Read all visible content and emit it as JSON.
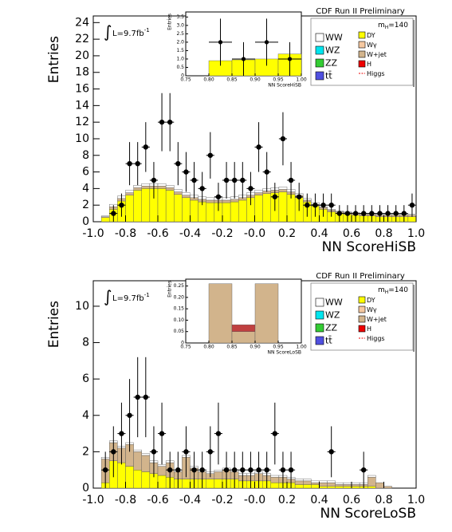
{
  "chart_data": [
    {
      "type": "histogram",
      "title": "CDF Run II Preliminary",
      "xlabel": "NN ScoreHiSB",
      "ylabel": "Entries",
      "integral": "∫",
      "lumi": "L=9.7fb",
      "lumi_exp": "-1",
      "mass": "m",
      "mass_sub": "H",
      "mass_val": "=140",
      "xlim": [
        -1,
        1
      ],
      "ylim": [
        0,
        24.8
      ],
      "xticks": [
        {
          "value": -1,
          "label": "-1.0"
        },
        -0.8,
        -0.6,
        -0.4,
        -0.2,
        {
          "value": 0,
          "label": "-0.0"
        },
        0.2,
        0.4,
        0.6,
        0.8,
        {
          "value": 1,
          "label": "1.0"
        }
      ],
      "yticks": [
        0,
        2,
        4,
        6,
        8,
        10,
        12,
        14,
        16,
        18,
        20,
        22,
        24
      ],
      "bins": [
        -1,
        -0.95,
        -0.9,
        -0.85,
        -0.8,
        -0.75,
        -0.7,
        -0.65,
        -0.6,
        -0.55,
        -0.5,
        -0.45,
        -0.4,
        -0.35,
        -0.3,
        -0.25,
        -0.2,
        -0.15,
        -0.1,
        -0.05,
        0,
        0.05,
        0.1,
        0.15,
        0.2,
        0.25,
        0.3,
        0.35,
        0.4,
        0.45,
        0.5,
        0.55,
        0.6,
        0.65,
        0.7,
        0.75,
        0.8,
        0.85,
        0.9,
        0.95,
        1
      ],
      "series": [
        {
          "name": "DY",
          "color": "#ffff00",
          "values": [
            0,
            0.5,
            1.5,
            2.5,
            3.2,
            3.8,
            4,
            4,
            4,
            3.8,
            3.3,
            2.9,
            2.6,
            2.4,
            2.3,
            2.3,
            2.3,
            2.4,
            2.6,
            2.9,
            3.2,
            3.4,
            3.5,
            3.6,
            3.3,
            2.9,
            2.4,
            1.9,
            1.5,
            1.2,
            1,
            0.9,
            0.8,
            0.7,
            0.7,
            0.6,
            0.6,
            0.6,
            0.6,
            0.6
          ]
        },
        {
          "name": "W+jet",
          "color": "#d2b48c",
          "values": [
            0,
            0.1,
            0.3,
            0.3,
            0.3,
            0.3,
            0.3,
            0.3,
            0.3,
            0.3,
            0.3,
            0.3,
            0.3,
            0.3,
            0.3,
            0.3,
            0.3,
            0.3,
            0.3,
            0.3,
            0.3,
            0.3,
            0.3,
            0.3,
            0.3,
            0.3,
            0.2,
            0.2,
            0.2,
            0.2,
            0.2,
            0.2,
            0.2,
            0.2,
            0.2,
            0.2,
            0.2,
            0.2,
            0.2,
            0.2
          ]
        },
        {
          "name": "WW",
          "color": "#ffffff",
          "values": [
            0,
            0.1,
            0.3,
            0.3,
            0.3,
            0.3,
            0.3,
            0.3,
            0.3,
            0.3,
            0.3,
            0.3,
            0.3,
            0.3,
            0.3,
            0.3,
            0.3,
            0.3,
            0.3,
            0.3,
            0.3,
            0.3,
            0.3,
            0.3,
            0.3,
            0.2,
            0.2,
            0.2,
            0.1,
            0.1,
            0.1,
            0.1,
            0.1,
            0.1,
            0.1,
            0.1,
            0.1,
            0.1,
            0.1,
            0.1
          ]
        }
      ],
      "data": {
        "color": "#000000",
        "values": [
          null,
          null,
          1,
          2,
          7,
          7,
          9,
          5,
          12,
          12,
          7,
          6,
          5,
          4,
          8,
          3,
          5,
          5,
          5,
          4,
          9,
          6,
          3,
          10,
          5,
          3,
          2,
          2,
          2,
          2,
          1,
          1,
          1,
          1,
          1,
          1,
          1,
          1,
          1,
          2
        ],
        "errors": [
          null,
          null,
          1,
          1.4,
          2.6,
          2.6,
          3,
          2.2,
          3.5,
          3.5,
          2.6,
          2.4,
          2.2,
          2,
          2.8,
          1.7,
          2.2,
          2.2,
          2.2,
          2,
          3,
          2.4,
          1.7,
          3.2,
          2.2,
          1.7,
          1.4,
          1.4,
          1.4,
          1.4,
          1,
          1,
          1,
          1,
          1,
          1,
          1,
          1,
          1,
          1.4
        ]
      },
      "legend": [
        {
          "name": "WW",
          "color": "#ffffff"
        },
        {
          "name": "WZ",
          "color": "#00e5ee"
        },
        {
          "name": "ZZ",
          "color": "#33cc33"
        },
        {
          "name": "tt̄",
          "color": "#5050e0"
        },
        {
          "name": "DY",
          "color": "#ffff00"
        },
        {
          "name": "Wγ",
          "color": "#f5c8a0"
        },
        {
          "name": "W+jet",
          "color": "#d2b48c"
        },
        {
          "name": "H",
          "color": "#ee0000"
        },
        {
          "name": "Higgs",
          "color": "#ee0000",
          "dashed": true
        }
      ]
    },
    {
      "type": "histogram",
      "title": "CDF Run II Preliminary",
      "xlabel": "NN ScoreLoSB",
      "ylabel": "Entries",
      "integral": "∫",
      "lumi": "L=9.7fb",
      "lumi_exp": "-1",
      "mass": "m",
      "mass_sub": "H",
      "mass_val": "=140",
      "xlim": [
        -1,
        1
      ],
      "ylim": [
        0,
        11.4
      ],
      "xticks": [
        {
          "value": -1,
          "label": "-1.0"
        },
        -0.8,
        -0.6,
        -0.4,
        -0.2,
        {
          "value": 0,
          "label": "-0.0"
        },
        0.2,
        0.4,
        0.6,
        0.8,
        {
          "value": 1,
          "label": "1.0"
        }
      ],
      "yticks": [
        0,
        2,
        4,
        6,
        8,
        10
      ],
      "bins": [
        -1,
        -0.95,
        -0.9,
        -0.85,
        -0.8,
        -0.75,
        -0.7,
        -0.65,
        -0.6,
        -0.55,
        -0.5,
        -0.45,
        -0.4,
        -0.35,
        -0.3,
        -0.25,
        -0.2,
        -0.15,
        -0.1,
        -0.05,
        0,
        0.05,
        0.1,
        0.15,
        0.2,
        0.25,
        0.3,
        0.35,
        0.4,
        0.45,
        0.5,
        0.55,
        0.6,
        0.65,
        0.7,
        0.75,
        0.8,
        0.85,
        0.9,
        0.95,
        1
      ],
      "series": [
        {
          "name": "DY",
          "color": "#ffff00",
          "values": [
            0,
            0.3,
            1.5,
            1.4,
            1.2,
            1.0,
            0.9,
            0.8,
            0.7,
            0.6,
            0.5,
            0.5,
            0.5,
            0.5,
            0.5,
            0.5,
            0.5,
            0.5,
            0.4,
            0.4,
            0.4,
            0.4,
            0.3,
            0.3,
            0.3,
            0.2,
            0.2,
            0.2,
            0.1,
            0.1,
            0.1,
            0.1,
            0.1,
            0.1,
            0.1,
            0,
            0,
            0,
            0,
            0
          ]
        },
        {
          "name": "W+jet",
          "color": "#d2b48c",
          "values": [
            0,
            1.3,
            1,
            0.8,
            1.2,
            1,
            0.9,
            0.6,
            0.5,
            0.8,
            0.4,
            1.2,
            0.6,
            0.4,
            0.3,
            0.4,
            0.5,
            0.4,
            0.3,
            0.3,
            0.4,
            0.3,
            0.3,
            0.3,
            0.2,
            0.2,
            0.2,
            0.1,
            0.2,
            0.2,
            0.1,
            0.1,
            0.1,
            0.1,
            0.5,
            0.3,
            0.1,
            0,
            0,
            0
          ]
        },
        {
          "name": "WW",
          "color": "#ffffff",
          "values": [
            0,
            0.1,
            0.1,
            0.1,
            0.1,
            0.1,
            0.1,
            0.1,
            0.1,
            0.1,
            0.1,
            0.1,
            0.1,
            0.1,
            0.1,
            0.1,
            0.1,
            0.1,
            0.1,
            0.1,
            0.1,
            0.1,
            0.1,
            0.1,
            0.1,
            0.1,
            0.1,
            0.1,
            0.1,
            0.1,
            0.1,
            0.1,
            0.1,
            0.1,
            0.1,
            0,
            0,
            0,
            0,
            0
          ]
        }
      ],
      "data": {
        "color": "#000000",
        "values": [
          null,
          1,
          2,
          3,
          4,
          5,
          5,
          2,
          3,
          1,
          1,
          2,
          1,
          1,
          2,
          3,
          1,
          1,
          1,
          1,
          1,
          1,
          3,
          1,
          1,
          null,
          null,
          null,
          null,
          2,
          null,
          null,
          null,
          1,
          null,
          null,
          null,
          null,
          null,
          null
        ],
        "errors": [
          null,
          1,
          1.4,
          1.7,
          2,
          2.2,
          2.2,
          1.4,
          1.7,
          1,
          1,
          1.4,
          1,
          1,
          1.4,
          1.7,
          1,
          1,
          1,
          1,
          1,
          1,
          1.7,
          1,
          1,
          null,
          null,
          null,
          null,
          1.4,
          null,
          null,
          null,
          1,
          null,
          null,
          null,
          null,
          null,
          null
        ]
      },
      "legend": [
        {
          "name": "WW",
          "color": "#ffffff"
        },
        {
          "name": "WZ",
          "color": "#00e5ee"
        },
        {
          "name": "ZZ",
          "color": "#33cc33"
        },
        {
          "name": "tt̄",
          "color": "#5050e0"
        },
        {
          "name": "DY",
          "color": "#ffff00"
        },
        {
          "name": "Wγ",
          "color": "#f5c8a0"
        },
        {
          "name": "W+jet",
          "color": "#d2b48c"
        },
        {
          "name": "H",
          "color": "#ee0000"
        },
        {
          "name": "Higgs",
          "color": "#ee0000",
          "dashed": true
        }
      ]
    },
    {
      "type": "histogram",
      "xlabel": "NN ScoreHiSB",
      "ylabel": "Entries",
      "xlim": [
        0.75,
        1
      ],
      "ylim": [
        0,
        3.8
      ],
      "xticks": [
        0.75,
        {
          "value": 0.8,
          "label": "0.80"
        },
        0.85,
        {
          "value": 0.9,
          "label": "0.90"
        },
        0.95,
        {
          "value": 1,
          "label": "1.00"
        }
      ],
      "yticks": [
        0,
        0.5,
        {
          "value": 1,
          "label": "1.0"
        },
        1.5,
        {
          "value": 2,
          "label": "2.0"
        },
        2.5,
        {
          "value": 3,
          "label": "3.0"
        },
        3.5
      ],
      "bins": [
        0.75,
        0.8,
        0.85,
        0.9,
        0.95,
        1
      ],
      "series": [
        {
          "name": "DY",
          "color": "#ffff00",
          "values": [
            0,
            0.9,
            0.95,
            1.0,
            1.3
          ]
        }
      ],
      "data": {
        "color": "#000000",
        "values": [
          null,
          2,
          1,
          2,
          1
        ],
        "errors": [
          null,
          1.4,
          1,
          1.4,
          1
        ]
      }
    },
    {
      "type": "histogram",
      "xlabel": "NN ScoreLoSB",
      "ylabel": "Entries",
      "xlim": [
        0.75,
        1
      ],
      "ylim": [
        0,
        0.28
      ],
      "xticks": [
        0.75,
        {
          "value": 0.8,
          "label": "0.80"
        },
        0.85,
        {
          "value": 0.9,
          "label": "0.90"
        },
        0.95,
        {
          "value": 1,
          "label": "1.00"
        }
      ],
      "yticks": [
        0,
        0.05,
        {
          "value": 0.1,
          "label": "0.10"
        },
        0.15,
        {
          "value": 0.2,
          "label": "0.20"
        },
        0.25
      ],
      "bins": [
        0.75,
        0.8,
        0.85,
        0.9,
        0.95,
        1
      ],
      "series": [
        {
          "name": "W+jet",
          "color": "#d2b48c",
          "values": [
            0,
            0.26,
            0.05,
            0.26,
            0
          ]
        },
        {
          "name": "H",
          "color": "#c04040",
          "values": [
            0,
            0,
            0.03,
            0,
            0
          ]
        }
      ],
      "data": {
        "color": "#000000",
        "values": [
          null,
          null,
          null,
          null,
          null
        ],
        "errors": [
          null,
          null,
          null,
          null,
          null
        ]
      }
    }
  ]
}
